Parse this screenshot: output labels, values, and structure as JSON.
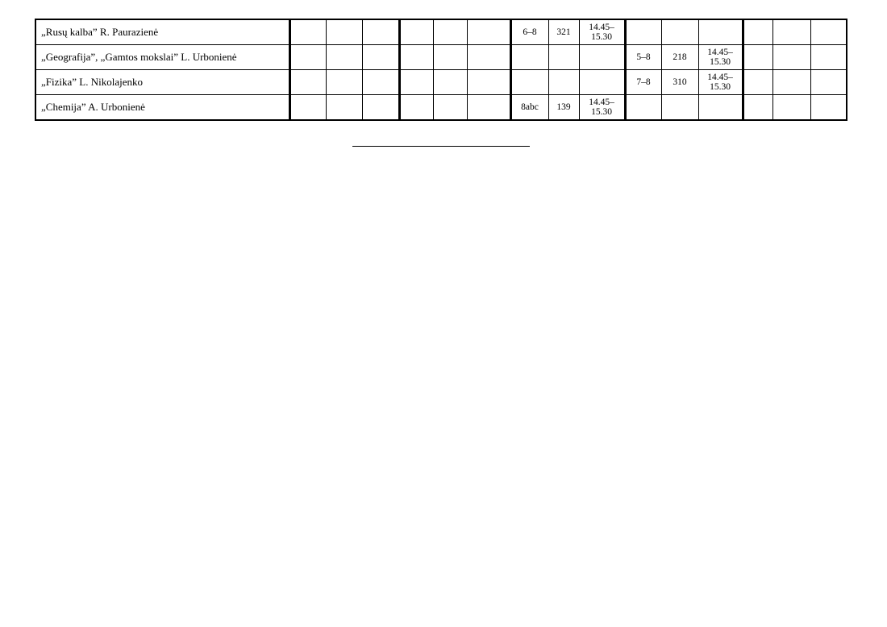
{
  "rows": [
    {
      "name": "„Rusų kalba” R. Paurazienė",
      "cells": [
        "",
        "",
        "",
        "",
        "",
        "",
        "6–8",
        "321",
        "14.45–\n15.30",
        "",
        "",
        "",
        "",
        "",
        ""
      ]
    },
    {
      "name": "„Geografija”, „Gamtos mokslai” L. Urbonienė",
      "cells": [
        "",
        "",
        "",
        "",
        "",
        "",
        "",
        "",
        "",
        "5–8",
        "218",
        "14.45–\n15.30",
        "",
        "",
        ""
      ]
    },
    {
      "name": "„Fizika” L. Nikolajenko",
      "cells": [
        "",
        "",
        "",
        "",
        "",
        "",
        "",
        "",
        "",
        "7–8",
        "310",
        "14.45–\n15.30",
        "",
        "",
        ""
      ]
    },
    {
      "name": "„Chemija” A. Urbonienė",
      "cells": [
        "",
        "",
        "",
        "",
        "",
        "",
        "8abc",
        "139",
        "14.45–\n15.30",
        "",
        "",
        "",
        "",
        "",
        ""
      ]
    }
  ]
}
